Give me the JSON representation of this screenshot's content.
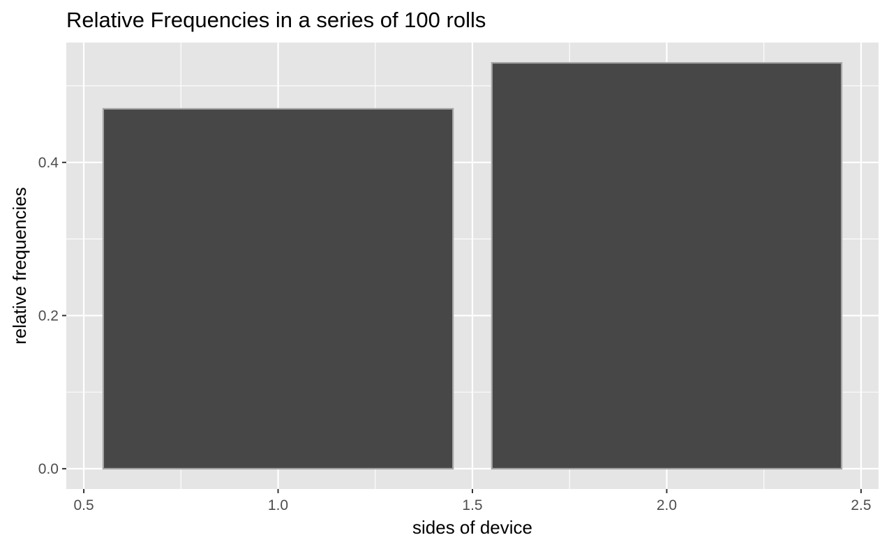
{
  "chart_data": {
    "type": "bar",
    "title": "Relative Frequencies in a series of 100 rolls",
    "xlabel": "sides of device",
    "ylabel": "relative frequencies",
    "x": [
      1,
      2
    ],
    "values": [
      0.47,
      0.53
    ],
    "bar_width": 0.9,
    "xlim": [
      0.455,
      2.545
    ],
    "ylim": [
      -0.0265,
      0.5565
    ],
    "x_ticks": [
      0.5,
      1.0,
      1.5,
      2.0,
      2.5
    ],
    "x_tick_labels": [
      "0.5",
      "1.0",
      "1.5",
      "2.0",
      "2.5"
    ],
    "y_ticks": [
      0.0,
      0.2,
      0.4
    ],
    "y_tick_labels": [
      "0.0",
      "0.2",
      "0.4"
    ],
    "grid": true,
    "legend": "none",
    "colors": {
      "panel": "#e5e5e5",
      "grid": "#ffffff",
      "bar_fill": "#474747",
      "bar_outline": "#a6a6a6",
      "tick": "#333333"
    }
  }
}
